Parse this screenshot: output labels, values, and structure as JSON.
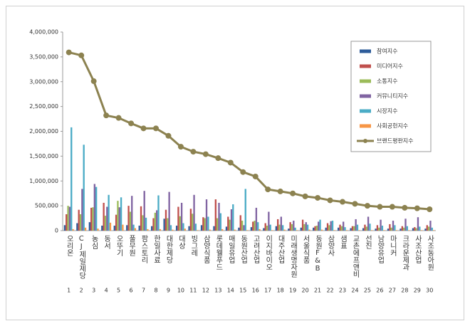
{
  "chart_data": {
    "type": "bar-line",
    "categories": [
      "오리온",
      "CJ제일제당",
      "농심",
      "동서",
      "오뚜기",
      "풀무원",
      "팜스토리",
      "한일사료",
      "대한제당",
      "대상",
      "빙그레",
      "삼양식품",
      "롯데웰푸드",
      "매일유업",
      "동원산업",
      "고려산업",
      "이지바이오",
      "대주산업",
      "미래생명자원",
      "서울식품",
      "동원F&B",
      "삼양사",
      "샘표",
      "교촌에프앤비",
      "선진",
      "남양유업",
      "마니커",
      "크라운제과",
      "사조산업",
      "사조동아원"
    ],
    "category_numbers": [
      1,
      2,
      3,
      4,
      5,
      6,
      7,
      8,
      9,
      10,
      11,
      12,
      13,
      14,
      15,
      16,
      17,
      18,
      19,
      20,
      21,
      22,
      23,
      24,
      25,
      26,
      27,
      28,
      29,
      30
    ],
    "series": [
      {
        "name": "참여지수",
        "color": "#2e5c9a",
        "values": [
          110000,
          150000,
          170000,
          100000,
          100000,
          110000,
          100000,
          90000,
          240000,
          100000,
          90000,
          110000,
          90000,
          80000,
          60000,
          70000,
          50000,
          90000,
          40000,
          60000,
          60000,
          60000,
          60000,
          50000,
          50000,
          40000,
          40000,
          40000,
          50000,
          40000
        ]
      },
      {
        "name": "미디어지수",
        "color": "#c0504d",
        "values": [
          330000,
          420000,
          460000,
          560000,
          320000,
          500000,
          490000,
          250000,
          420000,
          480000,
          440000,
          270000,
          630000,
          280000,
          310000,
          180000,
          150000,
          230000,
          170000,
          220000,
          90000,
          150000,
          120000,
          90000,
          120000,
          110000,
          130000,
          90000,
          70000,
          110000
        ]
      },
      {
        "name": "소통지수",
        "color": "#9bbb59",
        "values": [
          500000,
          330000,
          470000,
          300000,
          600000,
          380000,
          310000,
          360000,
          250000,
          290000,
          340000,
          250000,
          250000,
          220000,
          200000,
          200000,
          100000,
          120000,
          130000,
          130000,
          100000,
          110000,
          90000,
          90000,
          80000,
          60000,
          60000,
          60000,
          50000,
          80000
        ]
      },
      {
        "name": "커뮤니티지수",
        "color": "#8064a2",
        "values": [
          480000,
          840000,
          940000,
          480000,
          470000,
          700000,
          800000,
          410000,
          780000,
          560000,
          720000,
          630000,
          560000,
          430000,
          110000,
          460000,
          380000,
          280000,
          200000,
          170000,
          180000,
          190000,
          180000,
          230000,
          280000,
          220000,
          200000,
          240000,
          270000,
          200000
        ]
      },
      {
        "name": "시장지수",
        "color": "#4bacc6",
        "values": [
          2080000,
          1730000,
          880000,
          720000,
          670000,
          120000,
          260000,
          710000,
          110000,
          150000,
          140000,
          280000,
          350000,
          530000,
          840000,
          170000,
          120000,
          110000,
          60000,
          120000,
          220000,
          200000,
          70000,
          120000,
          140000,
          100000,
          110000,
          90000,
          80000,
          60000
        ]
      },
      {
        "name": "사회공헌지수",
        "color": "#f79646",
        "values": [
          30000,
          60000,
          40000,
          160000,
          120000,
          50000,
          30000,
          30000,
          20000,
          40000,
          10000,
          20000,
          30000,
          20000,
          10000,
          30000,
          10000,
          20000,
          10000,
          20000,
          20000,
          10000,
          10000,
          10000,
          10000,
          10000,
          10000,
          10000,
          10000,
          10000
        ]
      },
      {
        "name": "브랜드평판지수",
        "type": "line",
        "color": "#8c8250",
        "values": [
          3590000,
          3530000,
          3010000,
          2320000,
          2270000,
          2160000,
          2060000,
          2060000,
          1910000,
          1690000,
          1590000,
          1540000,
          1460000,
          1370000,
          1180000,
          1090000,
          830000,
          790000,
          750000,
          690000,
          660000,
          610000,
          580000,
          540000,
          500000,
          480000,
          480000,
          460000,
          450000,
          430000
        ]
      }
    ],
    "ylim": [
      0,
      4000000
    ],
    "yticks": [
      0,
      {
        "value": 500000,
        "label": "500,000"
      },
      {
        "value": 1000000,
        "label": "1,000,000"
      },
      {
        "value": 1500000,
        "label": "1,500,000"
      },
      {
        "value": 2000000,
        "label": "2,000,000"
      },
      {
        "value": 2500000,
        "label": "2,500,000"
      },
      {
        "value": 3000000,
        "label": "3,000,000"
      },
      {
        "value": 3500000,
        "label": "3,500,000"
      },
      {
        "value": 4000000,
        "label": "4,000,000"
      }
    ],
    "legend": "upper-right"
  }
}
